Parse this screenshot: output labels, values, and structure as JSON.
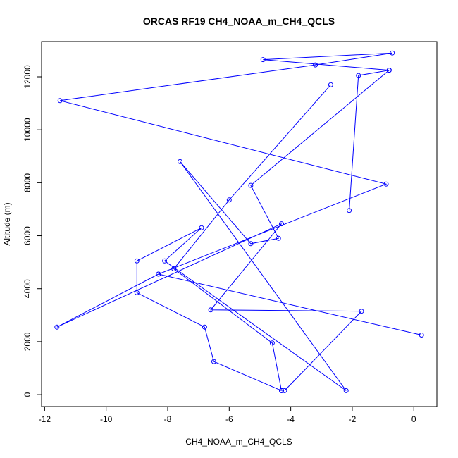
{
  "chart_data": {
    "type": "line",
    "title": "ORCAS RF19 CH4_NOAA_m_CH4_QCLS",
    "xlabel": "CH4_NOAA_m_CH4_QCLS",
    "ylabel": "Altitude (m)",
    "xlim": [
      -12.1,
      0.75
    ],
    "ylim": [
      -450,
      13330
    ],
    "xticks": [
      -12,
      -10,
      -8,
      -6,
      -4,
      -2,
      0
    ],
    "xtick_labels": [
      "-12",
      "-10",
      "-8",
      "-6",
      "-4",
      "-2",
      "0"
    ],
    "yticks": [
      0,
      2000,
      4000,
      6000,
      8000,
      10000,
      12000
    ],
    "ytick_labels": [
      "0",
      "2000",
      "4000",
      "6000",
      "8000",
      "10000",
      "12000"
    ],
    "grid": false,
    "series": [
      {
        "color": "#0000ff",
        "marker": "open-circle",
        "x": [
          -4.2,
          -1.7,
          -6.6,
          -4.3,
          -11.6,
          -8.3,
          -0.9,
          -11.5,
          -3.2,
          -0.7,
          -4.9,
          -0.8,
          -1.8,
          -2.1
        ],
        "y": [
          150,
          3150,
          3200,
          6450,
          2550,
          4550,
          7950,
          11100,
          12450,
          12900,
          12650,
          12250,
          12050,
          6950
        ]
      },
      {
        "color": "#0000ff",
        "marker": "open-circle",
        "x": [
          -4.3,
          -6.5,
          -6.8,
          -9.0,
          -9.0,
          -6.9,
          -8.1,
          -2.2,
          -7.6,
          -5.3,
          -4.4,
          -5.3,
          -0.8
        ],
        "y": [
          150,
          1250,
          2550,
          3850,
          5050,
          6300,
          5050,
          150,
          8800,
          5700,
          5900,
          7900,
          12250
        ]
      },
      {
        "color": "#0000ff",
        "marker": "open-circle",
        "x": [
          -4.3,
          -4.6,
          -7.8,
          -6.0,
          -2.7
        ],
        "y": [
          150,
          1950,
          4750,
          7350,
          11700
        ]
      },
      {
        "color": "#0000ff",
        "marker": "open-circle",
        "x": [
          0.25,
          -8.3
        ],
        "y": [
          2250,
          4550
        ]
      }
    ]
  }
}
